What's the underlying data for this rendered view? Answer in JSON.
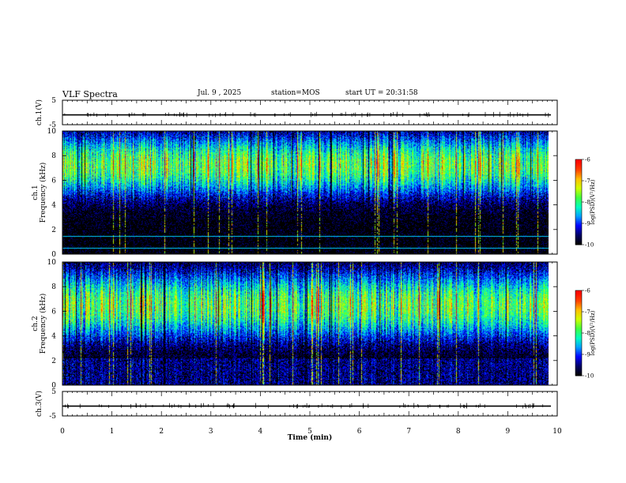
{
  "header": {
    "title": "VLF Spectra",
    "date": "Jul. 9 , 2025",
    "station": "station=MOS",
    "start": "start UT =  20:31:58"
  },
  "chart_data": [
    {
      "type": "line",
      "panel": "ch1-waveform",
      "ylabel": "ch.1(V)",
      "ylim": [
        -5,
        5
      ],
      "yticks": [
        "5",
        "-5"
      ],
      "x": [
        0,
        10
      ],
      "y_level": -1.0,
      "color": "#000000"
    },
    {
      "type": "heatmap",
      "panel": "ch1-spectrogram",
      "ylabel_top": "ch.1",
      "ylabel": "Frequency (kHz)",
      "ylim": [
        0,
        10
      ],
      "yticks": [
        "0",
        "2",
        "4",
        "6",
        "8",
        "10"
      ],
      "xlim": [
        0,
        9.83
      ],
      "band_khz": [
        5,
        9.5
      ],
      "horizontal_lines_khz": [
        0.5,
        1.5
      ],
      "colorbar": {
        "label": "log(PSD)(V²/Hz)",
        "range": [
          -10,
          -6
        ],
        "ticks": [
          "-6",
          "-7",
          "-8",
          "-9",
          "-10"
        ]
      }
    },
    {
      "type": "heatmap",
      "panel": "ch2-spectrogram",
      "ylabel_top": "ch.2",
      "ylabel": "Frequency (kHz)",
      "ylim": [
        0,
        10
      ],
      "yticks": [
        "0",
        "2",
        "4",
        "6",
        "8",
        "10"
      ],
      "xlim": [
        0,
        9.83
      ],
      "band_khz": [
        4,
        9
      ],
      "colorbar": {
        "label": "log(PSD)(V²/Hz)",
        "range": [
          -10,
          -6
        ],
        "ticks": [
          "-6",
          "-7",
          "-8",
          "-9",
          "-10"
        ]
      }
    },
    {
      "type": "line",
      "panel": "ch3-waveform",
      "ylabel": "ch.3(V)",
      "ylim": [
        -5,
        5
      ],
      "yticks": [
        "5",
        "-5"
      ],
      "x": [
        0,
        10
      ],
      "y_level": -1.0,
      "color": "#000000"
    }
  ],
  "xaxis": {
    "label": "Time (min)",
    "range": [
      0,
      10
    ],
    "ticks": [
      "0",
      "1",
      "2",
      "3",
      "4",
      "5",
      "6",
      "7",
      "8",
      "9",
      "10"
    ]
  },
  "colormap": [
    "#000000",
    "#000066",
    "#0000ff",
    "#00a0ff",
    "#00ffc0",
    "#40ff40",
    "#d0ff00",
    "#ffc000",
    "#ff4000",
    "#ff0000",
    "#ffffff"
  ]
}
